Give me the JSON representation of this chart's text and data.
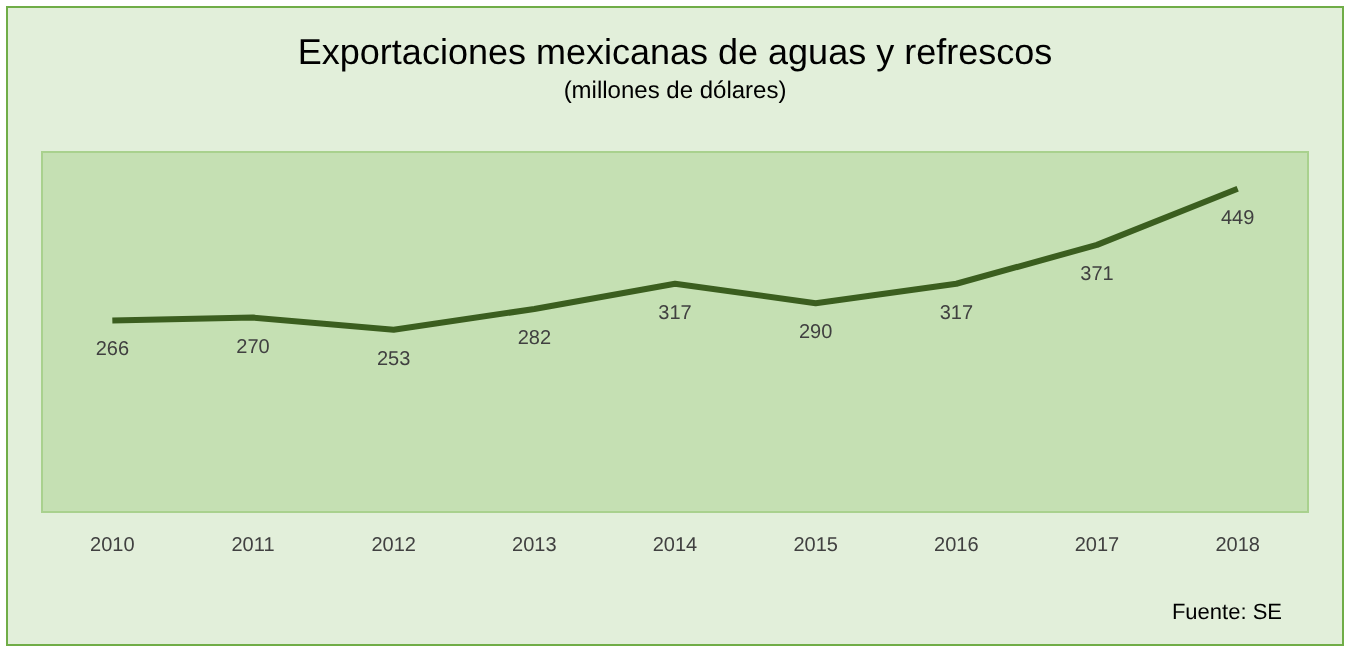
{
  "chart_data": {
    "type": "line",
    "title": "Exportaciones mexicanas de aguas y refrescos",
    "subtitle": "(millones de dólares)",
    "categories": [
      "2010",
      "2011",
      "2012",
      "2013",
      "2014",
      "2015",
      "2016",
      "2017",
      "2018"
    ],
    "series": [
      {
        "color": "#3b5e1f",
        "values": [
          266,
          270,
          253,
          282,
          317,
          290,
          317,
          371,
          449
        ]
      }
    ],
    "data_labels": true,
    "marker": "none",
    "annotations": [
      "Fuente: SE"
    ]
  }
}
